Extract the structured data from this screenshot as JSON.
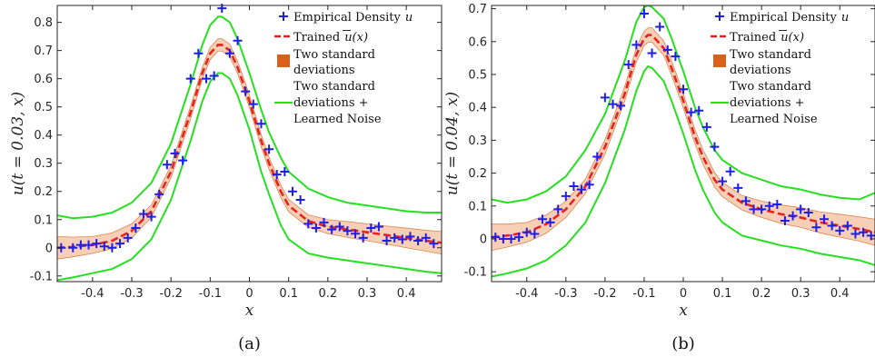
{
  "chart_data": [
    {
      "type": "line",
      "caption": "(a)",
      "xlabel": "x",
      "ylabel": "u(t = 0.03, x)",
      "xlim": [
        -0.49,
        0.49
      ],
      "ylim": [
        -0.12,
        0.86
      ],
      "xticks": [
        -0.4,
        -0.3,
        -0.2,
        -0.1,
        0,
        0.1,
        0.2,
        0.3,
        0.4
      ],
      "xtick_labels": [
        "-0.4",
        "-0.3",
        "-0.2",
        "-0.1",
        "0",
        "0.1",
        "0.2",
        "0.3",
        "0.4"
      ],
      "yticks": [
        -0.1,
        0,
        0.1,
        0.2,
        0.3,
        0.4,
        0.5,
        0.6,
        0.7,
        0.8
      ],
      "ytick_labels": [
        "-0.1",
        "0",
        "0.1",
        "0.2",
        "0.3",
        "0.4",
        "0.5",
        "0.6",
        "0.7",
        "0.8"
      ],
      "grid": false,
      "legend_position": "top-right",
      "legend": {
        "empirical_prefix": "Empirical Density",
        "empirical_var": "u",
        "trained_prefix": "Trained",
        "trained_var": "u(x)",
        "band_line1": "Two standard",
        "band_line2": "deviations",
        "noise_line1": "Two standard",
        "noise_line2": "deviations +",
        "noise_line3": "Learned Noise"
      },
      "colors": {
        "empirical": "#1f1fe6",
        "trained": "#e8231f",
        "band_fill": "#f6cfb6",
        "band_edge": "#d9884f",
        "band_legend": "#d95f1a",
        "noise": "#26e01f"
      },
      "mean_curve": {
        "x": [
          -0.49,
          -0.45,
          -0.4,
          -0.35,
          -0.3,
          -0.25,
          -0.2,
          -0.15,
          -0.12,
          -0.1,
          -0.08,
          -0.07,
          -0.05,
          -0.03,
          0,
          0.03,
          0.05,
          0.08,
          0.1,
          0.15,
          0.2,
          0.25,
          0.3,
          0.35,
          0.4,
          0.45,
          0.49
        ],
        "y": [
          0.0,
          0.003,
          0.01,
          0.025,
          0.06,
          0.13,
          0.27,
          0.48,
          0.62,
          0.69,
          0.72,
          0.72,
          0.7,
          0.64,
          0.52,
          0.38,
          0.3,
          0.2,
          0.15,
          0.095,
          0.075,
          0.065,
          0.055,
          0.045,
          0.035,
          0.025,
          0.018
        ]
      },
      "band_halfwidth": [
        0.04,
        0.035,
        0.03,
        0.028,
        0.025,
        0.022,
        0.022,
        0.022,
        0.022,
        0.022,
        0.022,
        0.022,
        0.022,
        0.022,
        0.022,
        0.022,
        0.022,
        0.022,
        0.022,
        0.022,
        0.025,
        0.028,
        0.03,
        0.032,
        0.035,
        0.037,
        0.04
      ],
      "noise_upper": {
        "x": [
          -0.49,
          -0.45,
          -0.4,
          -0.35,
          -0.3,
          -0.25,
          -0.2,
          -0.15,
          -0.12,
          -0.1,
          -0.08,
          -0.07,
          -0.05,
          -0.03,
          0,
          0.03,
          0.05,
          0.08,
          0.1,
          0.15,
          0.2,
          0.25,
          0.3,
          0.35,
          0.4,
          0.45,
          0.49
        ],
        "y": [
          0.115,
          0.105,
          0.11,
          0.125,
          0.16,
          0.23,
          0.37,
          0.58,
          0.72,
          0.79,
          0.82,
          0.82,
          0.8,
          0.74,
          0.62,
          0.49,
          0.41,
          0.32,
          0.27,
          0.21,
          0.18,
          0.16,
          0.15,
          0.14,
          0.13,
          0.125,
          0.125
        ]
      },
      "noise_lower": {
        "x": [
          -0.49,
          -0.45,
          -0.4,
          -0.35,
          -0.3,
          -0.25,
          -0.2,
          -0.15,
          -0.12,
          -0.1,
          -0.08,
          -0.07,
          -0.05,
          -0.03,
          0,
          0.03,
          0.05,
          0.08,
          0.1,
          0.15,
          0.2,
          0.25,
          0.3,
          0.35,
          0.4,
          0.45,
          0.49
        ],
        "y": [
          -0.115,
          -0.105,
          -0.09,
          -0.075,
          -0.04,
          0.03,
          0.17,
          0.38,
          0.52,
          0.59,
          0.62,
          0.62,
          0.6,
          0.54,
          0.42,
          0.27,
          0.19,
          0.08,
          0.03,
          -0.02,
          -0.035,
          -0.045,
          -0.055,
          -0.065,
          -0.075,
          -0.085,
          -0.09
        ]
      },
      "empirical": {
        "x": [
          -0.48,
          -0.45,
          -0.43,
          -0.41,
          -0.39,
          -0.37,
          -0.35,
          -0.33,
          -0.31,
          -0.29,
          -0.27,
          -0.25,
          -0.23,
          -0.21,
          -0.19,
          -0.17,
          -0.15,
          -0.13,
          -0.11,
          -0.09,
          -0.07,
          -0.05,
          -0.03,
          -0.01,
          0.01,
          0.03,
          0.05,
          0.07,
          0.09,
          0.11,
          0.13,
          0.15,
          0.17,
          0.19,
          0.21,
          0.23,
          0.25,
          0.27,
          0.29,
          0.31,
          0.33,
          0.35,
          0.37,
          0.39,
          0.41,
          0.43,
          0.45,
          0.47
        ],
        "y": [
          0.0,
          0.0,
          0.01,
          0.01,
          0.015,
          0.005,
          0.0,
          0.015,
          0.035,
          0.07,
          0.12,
          0.11,
          0.19,
          0.295,
          0.335,
          0.31,
          0.6,
          0.69,
          0.6,
          0.61,
          0.85,
          0.69,
          0.735,
          0.555,
          0.51,
          0.44,
          0.35,
          0.26,
          0.27,
          0.2,
          0.17,
          0.085,
          0.07,
          0.09,
          0.065,
          0.075,
          0.06,
          0.05,
          0.035,
          0.07,
          0.075,
          0.025,
          0.035,
          0.03,
          0.04,
          0.025,
          0.035,
          0.015
        ]
      }
    },
    {
      "type": "line",
      "caption": "(b)",
      "xlabel": "x",
      "ylabel": "u(t = 0.04, x)",
      "xlim": [
        -0.49,
        0.49
      ],
      "ylim": [
        -0.13,
        0.71
      ],
      "xticks": [
        -0.4,
        -0.3,
        -0.2,
        -0.1,
        0,
        0.1,
        0.2,
        0.3,
        0.4
      ],
      "xtick_labels": [
        "-0.4",
        "-0.3",
        "-0.2",
        "-0.1",
        "0",
        "0.1",
        "0.2",
        "0.3",
        "0.4"
      ],
      "yticks": [
        -0.1,
        0,
        0.1,
        0.2,
        0.3,
        0.4,
        0.5,
        0.6,
        0.7
      ],
      "ytick_labels": [
        "-0.1",
        "0",
        "0.1",
        "0.2",
        "0.3",
        "0.4",
        "0.5",
        "0.6",
        "0.7"
      ],
      "grid": false,
      "legend_position": "top-right",
      "legend": {
        "empirical_prefix": "Empirical Density",
        "empirical_var": "u",
        "trained_prefix": "Trained",
        "trained_var": "u(x)",
        "band_line1": "Two standard",
        "band_line2": "deviations",
        "noise_line1": "Two standard",
        "noise_line2": "deviations +",
        "noise_line3": "Learned Noise"
      },
      "colors": {
        "empirical": "#1f1fe6",
        "trained": "#e8231f",
        "band_fill": "#f6cfb6",
        "band_edge": "#d9884f",
        "band_legend": "#d95f1a",
        "noise": "#26e01f"
      },
      "mean_curve": {
        "x": [
          -0.49,
          -0.45,
          -0.4,
          -0.35,
          -0.3,
          -0.25,
          -0.2,
          -0.15,
          -0.12,
          -0.1,
          -0.09,
          -0.08,
          -0.05,
          -0.03,
          0,
          0.03,
          0.05,
          0.08,
          0.1,
          0.15,
          0.2,
          0.25,
          0.3,
          0.35,
          0.4,
          0.45,
          0.49
        ],
        "y": [
          0.005,
          0.01,
          0.02,
          0.045,
          0.09,
          0.16,
          0.28,
          0.44,
          0.56,
          0.61,
          0.62,
          0.62,
          0.58,
          0.52,
          0.42,
          0.31,
          0.25,
          0.18,
          0.15,
          0.11,
          0.09,
          0.075,
          0.065,
          0.05,
          0.04,
          0.03,
          0.02
        ]
      },
      "band_halfwidth": [
        0.04,
        0.035,
        0.03,
        0.028,
        0.025,
        0.022,
        0.022,
        0.022,
        0.022,
        0.022,
        0.022,
        0.022,
        0.022,
        0.022,
        0.022,
        0.022,
        0.022,
        0.022,
        0.022,
        0.022,
        0.025,
        0.028,
        0.03,
        0.032,
        0.035,
        0.037,
        0.04
      ],
      "noise_upper": {
        "x": [
          -0.49,
          -0.45,
          -0.4,
          -0.35,
          -0.3,
          -0.25,
          -0.2,
          -0.15,
          -0.12,
          -0.1,
          -0.09,
          -0.08,
          -0.05,
          -0.03,
          0,
          0.03,
          0.05,
          0.08,
          0.1,
          0.15,
          0.2,
          0.25,
          0.3,
          0.35,
          0.4,
          0.45,
          0.49
        ],
        "y": [
          0.12,
          0.11,
          0.12,
          0.145,
          0.19,
          0.27,
          0.38,
          0.54,
          0.66,
          0.705,
          0.71,
          0.705,
          0.67,
          0.61,
          0.51,
          0.4,
          0.34,
          0.27,
          0.24,
          0.2,
          0.18,
          0.16,
          0.15,
          0.135,
          0.125,
          0.12,
          0.14
        ]
      },
      "noise_lower": {
        "x": [
          -0.49,
          -0.45,
          -0.4,
          -0.35,
          -0.3,
          -0.25,
          -0.2,
          -0.15,
          -0.12,
          -0.1,
          -0.09,
          -0.08,
          -0.05,
          -0.03,
          0,
          0.03,
          0.05,
          0.08,
          0.1,
          0.15,
          0.2,
          0.25,
          0.3,
          0.35,
          0.4,
          0.45,
          0.49
        ],
        "y": [
          -0.115,
          -0.105,
          -0.09,
          -0.065,
          -0.02,
          0.05,
          0.17,
          0.33,
          0.45,
          0.51,
          0.525,
          0.52,
          0.48,
          0.42,
          0.32,
          0.21,
          0.15,
          0.08,
          0.05,
          0.01,
          -0.005,
          -0.02,
          -0.03,
          -0.045,
          -0.055,
          -0.065,
          -0.08
        ]
      },
      "empirical": {
        "x": [
          -0.48,
          -0.46,
          -0.44,
          -0.42,
          -0.4,
          -0.38,
          -0.36,
          -0.34,
          -0.32,
          -0.3,
          -0.28,
          -0.26,
          -0.24,
          -0.22,
          -0.2,
          -0.18,
          -0.16,
          -0.14,
          -0.12,
          -0.1,
          -0.08,
          -0.06,
          -0.04,
          -0.02,
          0.0,
          0.02,
          0.04,
          0.06,
          0.08,
          0.1,
          0.12,
          0.14,
          0.16,
          0.18,
          0.2,
          0.22,
          0.24,
          0.26,
          0.28,
          0.3,
          0.32,
          0.34,
          0.36,
          0.38,
          0.4,
          0.42,
          0.44,
          0.46,
          0.48
        ],
        "y": [
          0.005,
          0.0,
          0.0,
          0.005,
          0.02,
          0.015,
          0.06,
          0.05,
          0.09,
          0.13,
          0.16,
          0.15,
          0.165,
          0.25,
          0.43,
          0.41,
          0.405,
          0.53,
          0.59,
          0.685,
          0.565,
          0.645,
          0.575,
          0.555,
          0.455,
          0.385,
          0.39,
          0.34,
          0.28,
          0.175,
          0.205,
          0.155,
          0.115,
          0.09,
          0.09,
          0.1,
          0.105,
          0.055,
          0.07,
          0.09,
          0.08,
          0.035,
          0.06,
          0.04,
          0.025,
          0.04,
          0.015,
          0.02,
          0.01
        ]
      }
    }
  ]
}
